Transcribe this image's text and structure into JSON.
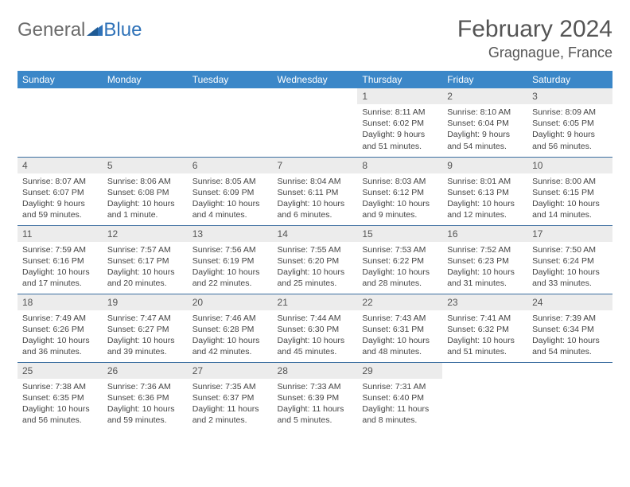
{
  "brand": {
    "part1": "General",
    "part2": "Blue"
  },
  "title": "February 2024",
  "location": "Gragnague, France",
  "colors": {
    "header_bg": "#3b87c8",
    "header_text": "#ffffff",
    "daynum_bg": "#ececec",
    "rule": "#3b6ea0",
    "brand_gray": "#6b6b6b",
    "brand_blue": "#2f72b8"
  },
  "day_headers": [
    "Sunday",
    "Monday",
    "Tuesday",
    "Wednesday",
    "Thursday",
    "Friday",
    "Saturday"
  ],
  "weeks": [
    [
      null,
      null,
      null,
      null,
      {
        "n": "1",
        "sr": "Sunrise: 8:11 AM",
        "ss": "Sunset: 6:02 PM",
        "dl": "Daylight: 9 hours and 51 minutes."
      },
      {
        "n": "2",
        "sr": "Sunrise: 8:10 AM",
        "ss": "Sunset: 6:04 PM",
        "dl": "Daylight: 9 hours and 54 minutes."
      },
      {
        "n": "3",
        "sr": "Sunrise: 8:09 AM",
        "ss": "Sunset: 6:05 PM",
        "dl": "Daylight: 9 hours and 56 minutes."
      }
    ],
    [
      {
        "n": "4",
        "sr": "Sunrise: 8:07 AM",
        "ss": "Sunset: 6:07 PM",
        "dl": "Daylight: 9 hours and 59 minutes."
      },
      {
        "n": "5",
        "sr": "Sunrise: 8:06 AM",
        "ss": "Sunset: 6:08 PM",
        "dl": "Daylight: 10 hours and 1 minute."
      },
      {
        "n": "6",
        "sr": "Sunrise: 8:05 AM",
        "ss": "Sunset: 6:09 PM",
        "dl": "Daylight: 10 hours and 4 minutes."
      },
      {
        "n": "7",
        "sr": "Sunrise: 8:04 AM",
        "ss": "Sunset: 6:11 PM",
        "dl": "Daylight: 10 hours and 6 minutes."
      },
      {
        "n": "8",
        "sr": "Sunrise: 8:03 AM",
        "ss": "Sunset: 6:12 PM",
        "dl": "Daylight: 10 hours and 9 minutes."
      },
      {
        "n": "9",
        "sr": "Sunrise: 8:01 AM",
        "ss": "Sunset: 6:13 PM",
        "dl": "Daylight: 10 hours and 12 minutes."
      },
      {
        "n": "10",
        "sr": "Sunrise: 8:00 AM",
        "ss": "Sunset: 6:15 PM",
        "dl": "Daylight: 10 hours and 14 minutes."
      }
    ],
    [
      {
        "n": "11",
        "sr": "Sunrise: 7:59 AM",
        "ss": "Sunset: 6:16 PM",
        "dl": "Daylight: 10 hours and 17 minutes."
      },
      {
        "n": "12",
        "sr": "Sunrise: 7:57 AM",
        "ss": "Sunset: 6:17 PM",
        "dl": "Daylight: 10 hours and 20 minutes."
      },
      {
        "n": "13",
        "sr": "Sunrise: 7:56 AM",
        "ss": "Sunset: 6:19 PM",
        "dl": "Daylight: 10 hours and 22 minutes."
      },
      {
        "n": "14",
        "sr": "Sunrise: 7:55 AM",
        "ss": "Sunset: 6:20 PM",
        "dl": "Daylight: 10 hours and 25 minutes."
      },
      {
        "n": "15",
        "sr": "Sunrise: 7:53 AM",
        "ss": "Sunset: 6:22 PM",
        "dl": "Daylight: 10 hours and 28 minutes."
      },
      {
        "n": "16",
        "sr": "Sunrise: 7:52 AM",
        "ss": "Sunset: 6:23 PM",
        "dl": "Daylight: 10 hours and 31 minutes."
      },
      {
        "n": "17",
        "sr": "Sunrise: 7:50 AM",
        "ss": "Sunset: 6:24 PM",
        "dl": "Daylight: 10 hours and 33 minutes."
      }
    ],
    [
      {
        "n": "18",
        "sr": "Sunrise: 7:49 AM",
        "ss": "Sunset: 6:26 PM",
        "dl": "Daylight: 10 hours and 36 minutes."
      },
      {
        "n": "19",
        "sr": "Sunrise: 7:47 AM",
        "ss": "Sunset: 6:27 PM",
        "dl": "Daylight: 10 hours and 39 minutes."
      },
      {
        "n": "20",
        "sr": "Sunrise: 7:46 AM",
        "ss": "Sunset: 6:28 PM",
        "dl": "Daylight: 10 hours and 42 minutes."
      },
      {
        "n": "21",
        "sr": "Sunrise: 7:44 AM",
        "ss": "Sunset: 6:30 PM",
        "dl": "Daylight: 10 hours and 45 minutes."
      },
      {
        "n": "22",
        "sr": "Sunrise: 7:43 AM",
        "ss": "Sunset: 6:31 PM",
        "dl": "Daylight: 10 hours and 48 minutes."
      },
      {
        "n": "23",
        "sr": "Sunrise: 7:41 AM",
        "ss": "Sunset: 6:32 PM",
        "dl": "Daylight: 10 hours and 51 minutes."
      },
      {
        "n": "24",
        "sr": "Sunrise: 7:39 AM",
        "ss": "Sunset: 6:34 PM",
        "dl": "Daylight: 10 hours and 54 minutes."
      }
    ],
    [
      {
        "n": "25",
        "sr": "Sunrise: 7:38 AM",
        "ss": "Sunset: 6:35 PM",
        "dl": "Daylight: 10 hours and 56 minutes."
      },
      {
        "n": "26",
        "sr": "Sunrise: 7:36 AM",
        "ss": "Sunset: 6:36 PM",
        "dl": "Daylight: 10 hours and 59 minutes."
      },
      {
        "n": "27",
        "sr": "Sunrise: 7:35 AM",
        "ss": "Sunset: 6:37 PM",
        "dl": "Daylight: 11 hours and 2 minutes."
      },
      {
        "n": "28",
        "sr": "Sunrise: 7:33 AM",
        "ss": "Sunset: 6:39 PM",
        "dl": "Daylight: 11 hours and 5 minutes."
      },
      {
        "n": "29",
        "sr": "Sunrise: 7:31 AM",
        "ss": "Sunset: 6:40 PM",
        "dl": "Daylight: 11 hours and 8 minutes."
      },
      null,
      null
    ]
  ]
}
